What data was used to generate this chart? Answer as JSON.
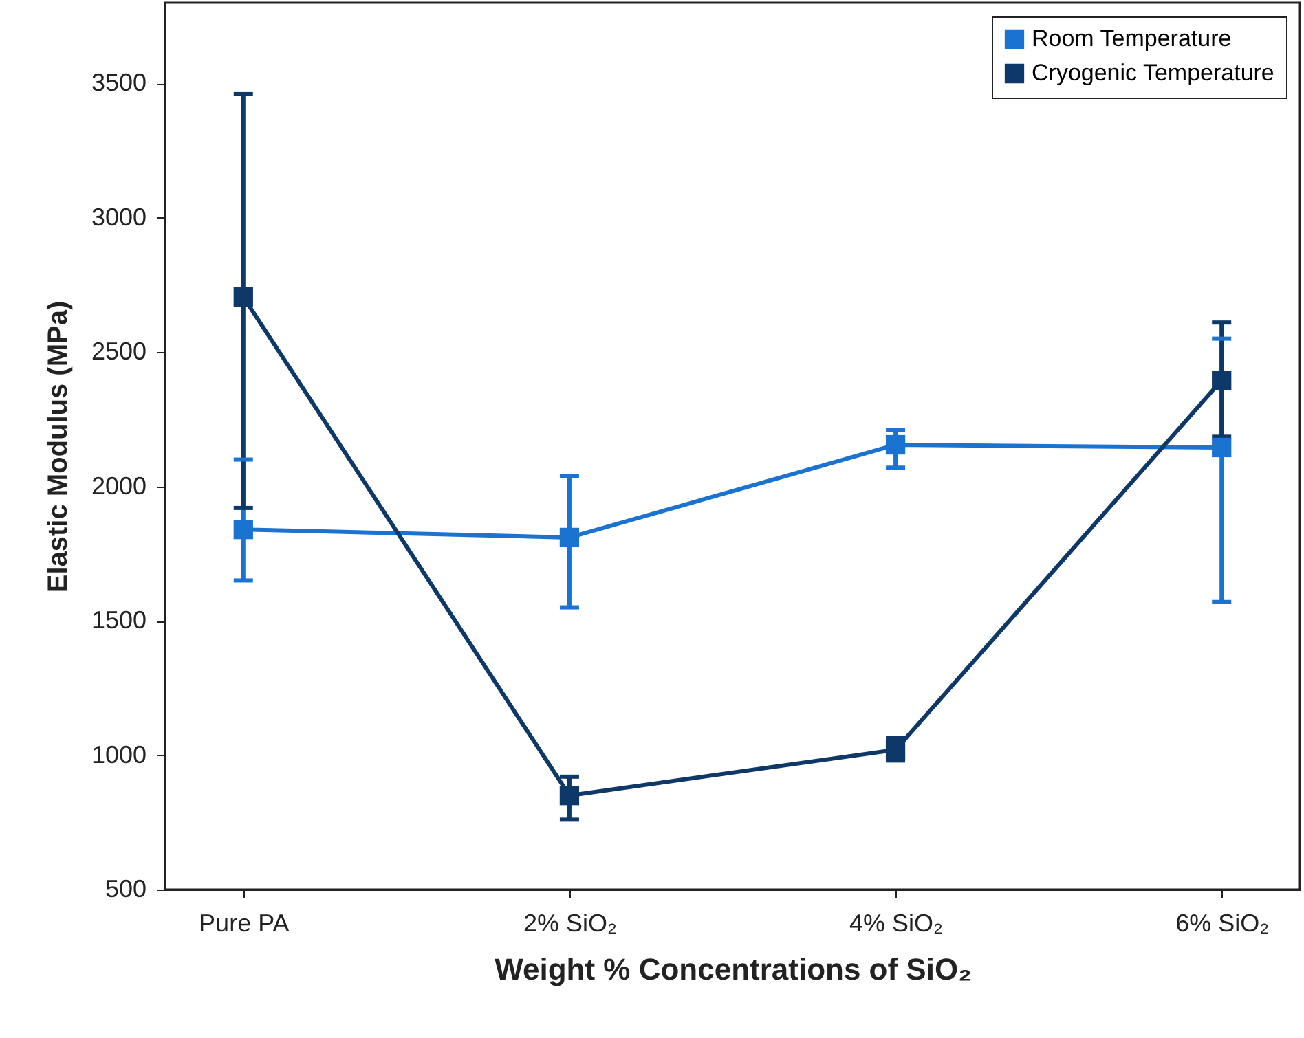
{
  "chart_data": {
    "type": "line",
    "xlabel": "Weight % Concentrations of SiO₂",
    "ylabel": "Elastic Modulus (MPa)",
    "categories": [
      "Pure PA",
      "2% SiO₂",
      "4% SiO₂",
      "6% SiO₂"
    ],
    "series": [
      {
        "name": "Room Temperature",
        "color": "#1a73d0",
        "values": [
          1840,
          1810,
          2155,
          2145
        ],
        "errors": [
          [
            1650,
            2100
          ],
          [
            1550,
            2040
          ],
          [
            2070,
            2210
          ],
          [
            1570,
            2550
          ]
        ]
      },
      {
        "name": "Cryogenic Temperature",
        "color": "#0e3868",
        "values": [
          2705,
          850,
          1020,
          2395
        ],
        "errors": [
          [
            1920,
            3460
          ],
          [
            760,
            920
          ],
          [
            980,
            1065
          ],
          [
            2185,
            2610
          ]
        ]
      }
    ],
    "ylim": [
      500,
      3800
    ],
    "yticks": [
      500,
      1000,
      1500,
      2000,
      2500,
      3000,
      3500
    ],
    "grid": false,
    "legend": "top right",
    "marker": "square",
    "line_style": "solid"
  }
}
